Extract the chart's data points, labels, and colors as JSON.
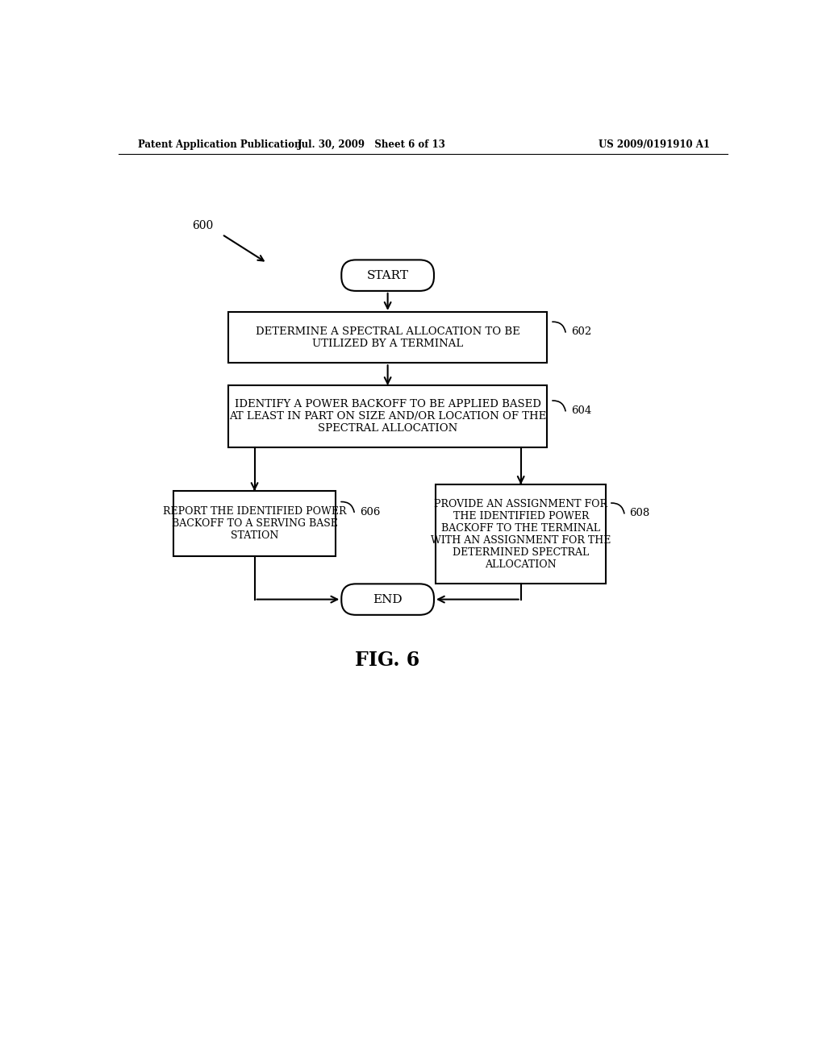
{
  "header_left": "Patent Application Publication",
  "header_mid": "Jul. 30, 2009   Sheet 6 of 13",
  "header_right": "US 2009/0191910 A1",
  "fig_label": "FIG. 6",
  "diagram_label": "600",
  "start_label": "START",
  "end_label": "END",
  "box602_label": "DETERMINE A SPECTRAL ALLOCATION TO BE\nUTILIZED BY A TERMINAL",
  "box602_num": "602",
  "box604_label": "IDENTIFY A POWER BACKOFF TO BE APPLIED BASED\nAT LEAST IN PART ON SIZE AND/OR LOCATION OF THE\nSPECTRAL ALLOCATION",
  "box604_num": "604",
  "box606_label": "REPORT THE IDENTIFIED POWER\nBACKOFF TO A SERVING BASE\nSTATION",
  "box606_num": "606",
  "box608_label": "PROVIDE AN ASSIGNMENT FOR\nTHE IDENTIFIED POWER\nBACKOFF TO THE TERMINAL\nWITH AN ASSIGNMENT FOR THE\nDETERMINED SPECTRAL\nALLOCATION",
  "box608_num": "608",
  "bg_color": "#ffffff",
  "line_color": "#000000",
  "text_color": "#000000"
}
